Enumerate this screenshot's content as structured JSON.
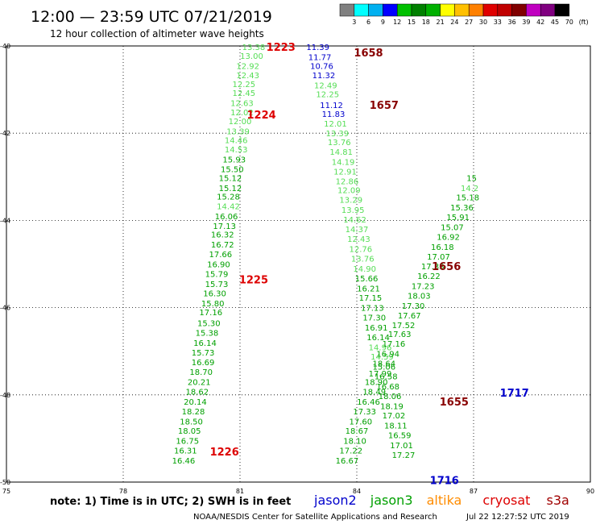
{
  "header": {
    "title": "12:00 — 23:59 UTC 07/21/2019",
    "subtitle": "12 hour collection of altimeter wave heights"
  },
  "colorbar": {
    "colors": [
      "#808080",
      "#00ffff",
      "#00b0f0",
      "#0000ff",
      "#00c000",
      "#008000",
      "#00b000",
      "#ffff00",
      "#ffc000",
      "#ff8000",
      "#e00000",
      "#c00000",
      "#800000",
      "#c000c0",
      "#800080",
      "#000000"
    ],
    "labels": [
      "3",
      "6",
      "9",
      "12",
      "15",
      "18",
      "21",
      "24",
      "27",
      "30",
      "33",
      "36",
      "39",
      "42",
      "45",
      "70",
      "(ft)"
    ]
  },
  "footer": {
    "note": "note:  1) Time is in UTC;  2) SWH is in feet",
    "legend": [
      {
        "name": "jason2",
        "color": "#0000cc"
      },
      {
        "name": "jason3",
        "color": "#00a000"
      },
      {
        "name": "altika",
        "color": "#ff8c00"
      },
      {
        "name": "cryosat",
        "color": "#dd0000"
      },
      {
        "name": "s3a",
        "color": "#a00000"
      }
    ],
    "credit": "NOAA/NESDIS Center for Satellite Applications and Research",
    "timestamp": "Jul 22 12:27:52 UTC 2019"
  },
  "chart_data": {
    "type": "scatter",
    "xlim": [
      75,
      90
    ],
    "ylim": [
      -50,
      -40
    ],
    "xticks": [
      75,
      78,
      81,
      84,
      87,
      90
    ],
    "yticks": [
      -40,
      -42,
      -44,
      -46,
      -48,
      -50
    ],
    "xticklabels": [
      "75",
      "78",
      "81",
      "84",
      "87",
      "90"
    ],
    "yticklabels": [
      "-40",
      "-42",
      "-44",
      "-46",
      "-48",
      "-50"
    ],
    "grid": true,
    "track_labels": [
      {
        "text": "1223",
        "lon": 82.05,
        "lat": -40.02,
        "color": "#dd0000"
      },
      {
        "text": "1224",
        "lon": 81.55,
        "lat": -41.57,
        "color": "#dd0000"
      },
      {
        "text": "1225",
        "lon": 81.35,
        "lat": -45.35,
        "color": "#dd0000"
      },
      {
        "text": "1226",
        "lon": 80.6,
        "lat": -49.3,
        "color": "#dd0000"
      },
      {
        "text": "1658",
        "lon": 84.3,
        "lat": -40.15,
        "color": "#880000"
      },
      {
        "text": "1657",
        "lon": 84.7,
        "lat": -41.35,
        "color": "#880000"
      },
      {
        "text": "1656",
        "lon": 86.3,
        "lat": -45.05,
        "color": "#880000"
      },
      {
        "text": "1655",
        "lon": 86.5,
        "lat": -48.15,
        "color": "#880000"
      },
      {
        "text": "1717",
        "lon": 88.05,
        "lat": -47.95,
        "color": "#0000cc"
      },
      {
        "text": "1716",
        "lon": 86.25,
        "lat": -49.95,
        "color": "#0000cc"
      }
    ],
    "series": [
      {
        "name": "jason3",
        "points": [
          {
            "lon": 81.35,
            "lat": -40.02,
            "v": "13.38"
          },
          {
            "lon": 81.3,
            "lat": -40.22,
            "v": "13.00"
          },
          {
            "lon": 81.2,
            "lat": -40.45,
            "v": "12.92"
          },
          {
            "lon": 81.2,
            "lat": -40.67,
            "v": "12.43"
          },
          {
            "lon": 81.1,
            "lat": -40.87,
            "v": "12.25"
          },
          {
            "lon": 81.1,
            "lat": -41.07,
            "v": "12.45"
          },
          {
            "lon": 81.05,
            "lat": -41.3,
            "v": "12.63"
          },
          {
            "lon": 81.05,
            "lat": -41.52,
            "v": "12.02"
          },
          {
            "lon": 81.0,
            "lat": -41.72,
            "v": "12.00"
          },
          {
            "lon": 80.95,
            "lat": -41.95,
            "v": "13.39"
          },
          {
            "lon": 80.9,
            "lat": -42.15,
            "v": "14.46"
          },
          {
            "lon": 80.9,
            "lat": -42.37,
            "v": "14.53"
          },
          {
            "lon": 80.85,
            "lat": -42.6,
            "v": "15.93"
          },
          {
            "lon": 80.8,
            "lat": -42.82,
            "v": "15.50"
          },
          {
            "lon": 80.75,
            "lat": -43.02,
            "v": "15.12"
          },
          {
            "lon": 80.75,
            "lat": -43.25,
            "v": "15.12"
          },
          {
            "lon": 80.7,
            "lat": -43.45,
            "v": "15.28"
          },
          {
            "lon": 80.7,
            "lat": -43.67,
            "v": "14.42"
          },
          {
            "lon": 80.65,
            "lat": -43.9,
            "v": "16.06"
          },
          {
            "lon": 80.6,
            "lat": -44.12,
            "v": "17.13"
          },
          {
            "lon": 80.55,
            "lat": -44.32,
            "v": "16.32"
          },
          {
            "lon": 80.55,
            "lat": -44.55,
            "v": "16.72"
          },
          {
            "lon": 80.5,
            "lat": -44.77,
            "v": "17.66"
          },
          {
            "lon": 80.45,
            "lat": -45.0,
            "v": "16.90"
          },
          {
            "lon": 80.4,
            "lat": -45.22,
            "v": "15.79"
          },
          {
            "lon": 80.4,
            "lat": -45.45,
            "v": "15.73"
          },
          {
            "lon": 80.35,
            "lat": -45.67,
            "v": "16.30"
          },
          {
            "lon": 80.3,
            "lat": -45.9,
            "v": "15.80"
          },
          {
            "lon": 80.25,
            "lat": -46.1,
            "v": "17.16"
          },
          {
            "lon": 80.2,
            "lat": -46.35,
            "v": "15.30"
          },
          {
            "lon": 80.15,
            "lat": -46.57,
            "v": "15.38"
          },
          {
            "lon": 80.1,
            "lat": -46.8,
            "v": "16.14"
          },
          {
            "lon": 80.05,
            "lat": -47.02,
            "v": "15.73"
          },
          {
            "lon": 80.05,
            "lat": -47.25,
            "v": "16.69"
          },
          {
            "lon": 80.0,
            "lat": -47.47,
            "v": "18.70"
          },
          {
            "lon": 79.95,
            "lat": -47.7,
            "v": "20.21"
          },
          {
            "lon": 79.9,
            "lat": -47.92,
            "v": "18.62"
          },
          {
            "lon": 79.85,
            "lat": -48.15,
            "v": "20.14"
          },
          {
            "lon": 79.8,
            "lat": -48.37,
            "v": "18.28"
          },
          {
            "lon": 79.75,
            "lat": -48.6,
            "v": "18.50"
          },
          {
            "lon": 79.7,
            "lat": -48.82,
            "v": "18.05"
          },
          {
            "lon": 79.65,
            "lat": -49.05,
            "v": "16.75"
          },
          {
            "lon": 79.6,
            "lat": -49.27,
            "v": "16.31"
          },
          {
            "lon": 79.55,
            "lat": -49.5,
            "v": "16.46"
          },
          {
            "lon": 83.0,
            "lat": -40.02,
            "v": "11.39"
          },
          {
            "lon": 83.05,
            "lat": -40.25,
            "v": "11.77"
          },
          {
            "lon": 83.1,
            "lat": -40.45,
            "v": "10.76"
          },
          {
            "lon": 83.15,
            "lat": -40.67,
            "v": "11.32"
          },
          {
            "lon": 83.2,
            "lat": -40.9,
            "v": "12.49"
          },
          {
            "lon": 83.25,
            "lat": -41.1,
            "v": "12.25"
          },
          {
            "lon": 83.35,
            "lat": -41.35,
            "v": "11.12"
          },
          {
            "lon": 83.4,
            "lat": -41.55,
            "v": "11.83"
          },
          {
            "lon": 83.45,
            "lat": -41.77,
            "v": "12.01"
          },
          {
            "lon": 83.5,
            "lat": -42.0,
            "v": "13.39"
          },
          {
            "lon": 83.55,
            "lat": -42.2,
            "v": "13.76"
          },
          {
            "lon": 83.6,
            "lat": -42.42,
            "v": "14.81"
          },
          {
            "lon": 83.65,
            "lat": -42.65,
            "v": "14.19"
          },
          {
            "lon": 83.7,
            "lat": -42.87,
            "v": "12.91"
          },
          {
            "lon": 83.75,
            "lat": -43.1,
            "v": "12.86"
          },
          {
            "lon": 83.8,
            "lat": -43.3,
            "v": "12.09"
          },
          {
            "lon": 83.85,
            "lat": -43.52,
            "v": "13.29"
          },
          {
            "lon": 83.9,
            "lat": -43.75,
            "v": "13.95"
          },
          {
            "lon": 83.95,
            "lat": -43.97,
            "v": "14.62"
          },
          {
            "lon": 84.0,
            "lat": -44.2,
            "v": "14.37"
          },
          {
            "lon": 84.05,
            "lat": -44.42,
            "v": "12.43"
          },
          {
            "lon": 84.1,
            "lat": -44.65,
            "v": "12.76"
          },
          {
            "lon": 84.15,
            "lat": -44.87,
            "v": "13.76"
          },
          {
            "lon": 84.2,
            "lat": -45.1,
            "v": "14.90"
          },
          {
            "lon": 84.25,
            "lat": -45.32,
            "v": "15.66"
          },
          {
            "lon": 84.3,
            "lat": -45.55,
            "v": "16.21"
          },
          {
            "lon": 84.35,
            "lat": -45.77,
            "v": "17.15"
          },
          {
            "lon": 84.4,
            "lat": -46.0,
            "v": "17.13"
          },
          {
            "lon": 84.45,
            "lat": -46.22,
            "v": "17.30"
          },
          {
            "lon": 84.5,
            "lat": -46.45,
            "v": "16.91"
          },
          {
            "lon": 84.55,
            "lat": -46.67,
            "v": "16.14"
          },
          {
            "lon": 84.6,
            "lat": -46.9,
            "v": "14.96"
          },
          {
            "lon": 84.65,
            "lat": -47.12,
            "v": "14.59"
          },
          {
            "lon": 84.7,
            "lat": -47.35,
            "v": "15.06"
          },
          {
            "lon": 84.75,
            "lat": -47.57,
            "v": "16.58"
          },
          {
            "lon": 84.8,
            "lat": -47.8,
            "v": "16.68"
          },
          {
            "lon": 84.85,
            "lat": -48.02,
            "v": "18.06"
          },
          {
            "lon": 84.9,
            "lat": -48.25,
            "v": "18.19"
          },
          {
            "lon": 84.95,
            "lat": -48.47,
            "v": "17.02"
          },
          {
            "lon": 85.0,
            "lat": -48.7,
            "v": "18.11"
          },
          {
            "lon": 85.1,
            "lat": -48.92,
            "v": "16.59"
          },
          {
            "lon": 85.15,
            "lat": -49.15,
            "v": "17.01"
          },
          {
            "lon": 85.2,
            "lat": -49.37,
            "v": "17.27"
          },
          {
            "lon": 83.75,
            "lat": -49.5,
            "v": "16.67"
          },
          {
            "lon": 83.85,
            "lat": -49.27,
            "v": "17.22"
          },
          {
            "lon": 83.95,
            "lat": -49.05,
            "v": "18.10"
          },
          {
            "lon": 84.0,
            "lat": -48.82,
            "v": "18.67"
          },
          {
            "lon": 84.1,
            "lat": -48.6,
            "v": "17.60"
          },
          {
            "lon": 84.2,
            "lat": -48.37,
            "v": "17.33"
          },
          {
            "lon": 84.3,
            "lat": -48.15,
            "v": "16.46"
          },
          {
            "lon": 84.45,
            "lat": -47.92,
            "v": "18.49"
          },
          {
            "lon": 84.5,
            "lat": -47.7,
            "v": "18.90"
          },
          {
            "lon": 84.6,
            "lat": -47.5,
            "v": "17.99"
          },
          {
            "lon": 84.7,
            "lat": -47.27,
            "v": "18.64"
          },
          {
            "lon": 84.8,
            "lat": -47.05,
            "v": "16.94"
          },
          {
            "lon": 84.95,
            "lat": -46.82,
            "v": "17.16"
          },
          {
            "lon": 85.1,
            "lat": -46.6,
            "v": "17.63"
          },
          {
            "lon": 85.2,
            "lat": -46.4,
            "v": "17.52"
          },
          {
            "lon": 85.35,
            "lat": -46.17,
            "v": "17.67"
          },
          {
            "lon": 85.45,
            "lat": -45.95,
            "v": "17.30"
          },
          {
            "lon": 85.6,
            "lat": -45.72,
            "v": "18.03"
          },
          {
            "lon": 85.7,
            "lat": -45.5,
            "v": "17.23"
          },
          {
            "lon": 85.85,
            "lat": -45.27,
            "v": "16.22"
          },
          {
            "lon": 85.95,
            "lat": -45.05,
            "v": "17.33"
          },
          {
            "lon": 86.1,
            "lat": -44.82,
            "v": "17.07"
          },
          {
            "lon": 86.2,
            "lat": -44.6,
            "v": "16.18"
          },
          {
            "lon": 86.35,
            "lat": -44.37,
            "v": "16.92"
          },
          {
            "lon": 86.45,
            "lat": -44.15,
            "v": "15.07"
          },
          {
            "lon": 86.6,
            "lat": -43.92,
            "v": "15.91"
          },
          {
            "lon": 86.7,
            "lat": -43.7,
            "v": "15.36"
          },
          {
            "lon": 86.85,
            "lat": -43.47,
            "v": "15.18"
          },
          {
            "lon": 86.9,
            "lat": -43.25,
            "v": "14.2"
          },
          {
            "lon": 86.95,
            "lat": -43.02,
            "v": "15"
          }
        ]
      }
    ]
  }
}
